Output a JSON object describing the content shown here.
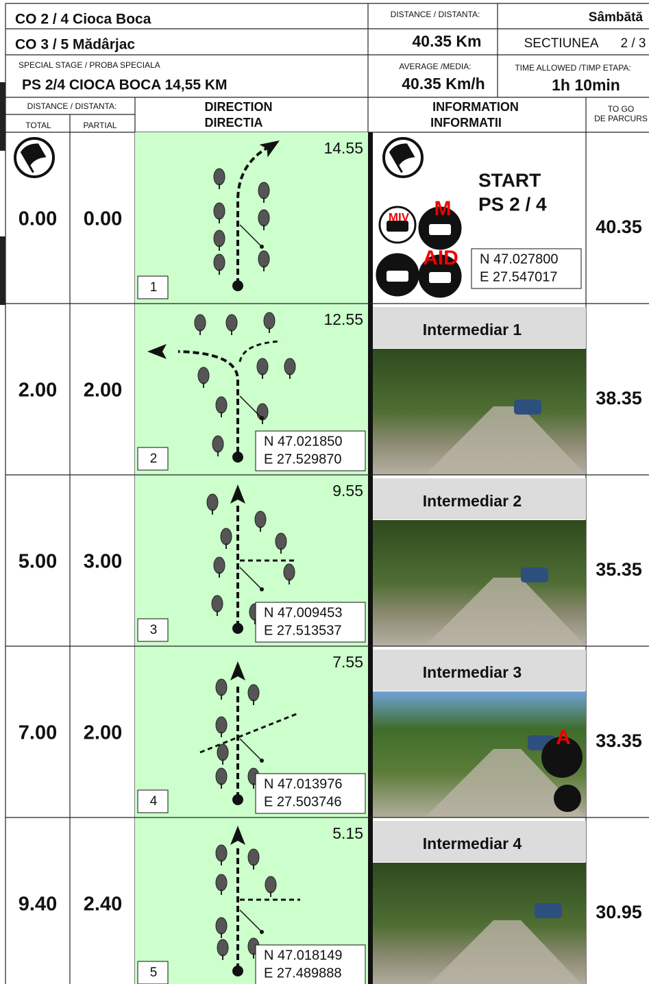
{
  "header": {
    "co_lines": [
      "CO 2 / 4 Cioca Boca",
      "CO 3 / 5 Mădârjac"
    ],
    "day": "Sâmbătă",
    "distance_label": "DISTANCE / DISTANTA:",
    "distance": "40.35 Km",
    "section_label": "SECTIUNEA",
    "section": "2 / 3",
    "special_stage_label": "SPECIAL STAGE / PROBA SPECIALA",
    "special_stage": "PS 2/4 CIOCA BOCA 14,55 KM",
    "average_label": "AVERAGE /MEDIA:",
    "average": "40.35 Km/h",
    "time_label": "TIME ALLOWED /TIMP ETAPA:",
    "time": "1h 10min"
  },
  "columns": {
    "distance": "DISTANCE / DISTANTA:",
    "total": "TOTAL",
    "partial": "PARTIAL",
    "direction": [
      "DIRECTION",
      "DIRECTIA"
    ],
    "information": [
      "INFORMATION",
      "INFORMATII"
    ],
    "to_go": [
      "TO GO",
      "DE PARCURS"
    ]
  },
  "rows": [
    {
      "number": "1",
      "total": "0.00",
      "partial": "0.00",
      "remaining": "14.55",
      "coords": [
        "N 47.027800",
        "E 27.547017"
      ],
      "info": [
        "START",
        "PS 2 / 4"
      ],
      "icons": [
        "MIV",
        "M",
        "AID"
      ],
      "to_go": "40.35"
    },
    {
      "number": "2",
      "total": "2.00",
      "partial": "2.00",
      "remaining": "12.55",
      "coords": [
        "N 47.021850",
        "E 27.529870"
      ],
      "info": [
        "Intermediar 1"
      ],
      "icons": [],
      "to_go": "38.35"
    },
    {
      "number": "3",
      "total": "5.00",
      "partial": "3.00",
      "remaining": "9.55",
      "coords": [
        "N 47.009453",
        "E 27.513537"
      ],
      "info": [
        "Intermediar 2"
      ],
      "icons": [],
      "to_go": "35.35"
    },
    {
      "number": "4",
      "total": "7.00",
      "partial": "2.00",
      "remaining": "7.55",
      "coords": [
        "N 47.013976",
        "E 27.503746"
      ],
      "info": [
        "Intermediar 3"
      ],
      "icons": [
        "A"
      ],
      "to_go": "33.35"
    },
    {
      "number": "5",
      "total": "9.40",
      "partial": "2.40",
      "remaining": "5.15",
      "coords": [
        "N 47.018149",
        "E 27.489888"
      ],
      "info": [
        "Intermediar 4"
      ],
      "icons": [],
      "to_go": "30.95"
    }
  ]
}
